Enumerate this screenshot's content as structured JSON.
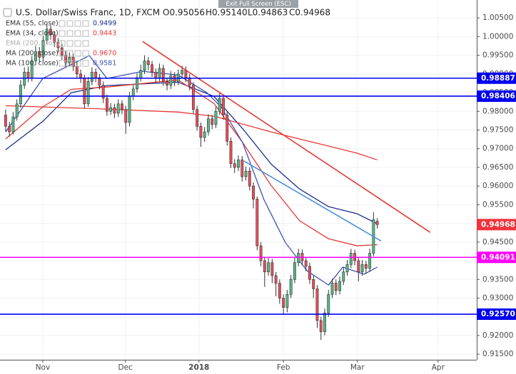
{
  "chart_data": {
    "type": "candlestick",
    "title": "U.S. Dollar/Swiss Franc, 1D, FXCM",
    "readout": [
      "O0.95056",
      "H0.95140",
      "L0.94863",
      "C0.94968"
    ],
    "exit_button": "Exit Full Screen (ESC)",
    "up_color": "#53b987",
    "down_color": "#eb4d5c",
    "grid": true,
    "xlim": [
      -1.5,
      125.5
    ],
    "xticks": [
      {
        "value": 9.9,
        "label": "Nov"
      },
      {
        "value": 31.9,
        "label": "Dec"
      },
      {
        "value": 51.5,
        "label": "2018"
      },
      {
        "value": 74,
        "label": "Feb"
      },
      {
        "value": 93.7,
        "label": "Mar"
      },
      {
        "value": 115.2,
        "label": "Apr"
      }
    ],
    "ylim": [
      0.9135,
      1.0098
    ],
    "yticks": [
      {
        "value": 0.915,
        "label": "0.91500"
      },
      {
        "value": 0.92,
        "label": "0.92000"
      },
      {
        "value": 0.925,
        "label": "0.92500"
      },
      {
        "value": 0.93,
        "label": "0.93000"
      },
      {
        "value": 0.935,
        "label": "0.93500"
      },
      {
        "value": 0.94,
        "label": "0.94000"
      },
      {
        "value": 0.945,
        "label": "0.94500"
      },
      {
        "value": 0.95,
        "label": "0.95000"
      },
      {
        "value": 0.955,
        "label": "0.95500"
      },
      {
        "value": 0.96,
        "label": "0.96000"
      },
      {
        "value": 0.965,
        "label": "0.96500"
      },
      {
        "value": 0.97,
        "label": "0.97000"
      },
      {
        "value": 0.975,
        "label": "0.97500"
      },
      {
        "value": 0.98,
        "label": "0.98000"
      },
      {
        "value": 0.985,
        "label": "0.98500"
      },
      {
        "value": 0.99,
        "label": "0.99000"
      },
      {
        "value": 0.995,
        "label": "0.99500"
      },
      {
        "value": 1.0,
        "label": "1.00000"
      },
      {
        "value": 1.005,
        "label": "1.00500"
      }
    ],
    "ohlc": [
      [
        0.979,
        0.9805,
        0.9745,
        0.976
      ],
      [
        0.976,
        0.9772,
        0.9732,
        0.9745
      ],
      [
        0.9745,
        0.9798,
        0.9738,
        0.9785
      ],
      [
        0.9785,
        0.9832,
        0.9775,
        0.982
      ],
      [
        0.982,
        0.9884,
        0.981,
        0.987
      ],
      [
        0.987,
        0.9918,
        0.986,
        0.9905
      ],
      [
        0.9905,
        0.992,
        0.9878,
        0.989
      ],
      [
        0.989,
        0.9948,
        0.988,
        0.9935
      ],
      [
        0.9935,
        0.9975,
        0.9925,
        0.996
      ],
      [
        0.996,
        0.9972,
        0.993,
        0.9945
      ],
      [
        0.9945,
        1.0002,
        0.9935,
        0.999
      ],
      [
        0.999,
        1.0034,
        0.998,
        1.002
      ],
      [
        1.002,
        1.003,
        0.9992,
        1.0005
      ],
      [
        1.0005,
        1.0015,
        0.9972,
        0.9985
      ],
      [
        0.9985,
        0.9996,
        0.9958,
        0.997
      ],
      [
        0.997,
        0.9982,
        0.9938,
        0.995
      ],
      [
        0.995,
        0.9962,
        0.9918,
        0.993
      ],
      [
        0.993,
        0.9958,
        0.992,
        0.9945
      ],
      [
        0.9945,
        0.9955,
        0.9908,
        0.992
      ],
      [
        0.992,
        0.9932,
        0.9888,
        0.99
      ],
      [
        0.99,
        0.9912,
        0.9876,
        0.989
      ],
      [
        0.989,
        0.9898,
        0.9808,
        0.982
      ],
      [
        0.982,
        0.9892,
        0.9812,
        0.988
      ],
      [
        0.988,
        0.9918,
        0.987,
        0.9905
      ],
      [
        0.9905,
        0.9915,
        0.9878,
        0.989
      ],
      [
        0.989,
        0.99,
        0.9858,
        0.987
      ],
      [
        0.987,
        0.988,
        0.9822,
        0.9835
      ],
      [
        0.9835,
        0.9845,
        0.9788,
        0.98
      ],
      [
        0.98,
        0.9822,
        0.979,
        0.981
      ],
      [
        0.981,
        0.982,
        0.9782,
        0.9795
      ],
      [
        0.9795,
        0.9832,
        0.9785,
        0.982
      ],
      [
        0.982,
        0.983,
        0.9792,
        0.9805
      ],
      [
        0.9805,
        0.9815,
        0.974,
        0.977
      ],
      [
        0.977,
        0.9852,
        0.976,
        0.984
      ],
      [
        0.984,
        0.9872,
        0.983,
        0.986
      ],
      [
        0.986,
        0.9902,
        0.985,
        0.989
      ],
      [
        0.989,
        0.9925,
        0.988,
        0.991
      ],
      [
        0.991,
        0.995,
        0.99,
        0.9935
      ],
      [
        0.9935,
        0.9945,
        0.991,
        0.9925
      ],
      [
        0.9925,
        0.9935,
        0.9892,
        0.9905
      ],
      [
        0.9905,
        0.9915,
        0.9875,
        0.989
      ],
      [
        0.989,
        0.9928,
        0.988,
        0.9915
      ],
      [
        0.9915,
        0.9925,
        0.9868,
        0.988
      ],
      [
        0.988,
        0.989,
        0.9856,
        0.987
      ],
      [
        0.987,
        0.9908,
        0.986,
        0.9895
      ],
      [
        0.9895,
        0.9905,
        0.9868,
        0.988
      ],
      [
        0.988,
        0.9912,
        0.987,
        0.99
      ],
      [
        0.99,
        0.9922,
        0.989,
        0.991
      ],
      [
        0.991,
        0.992,
        0.9878,
        0.989
      ],
      [
        0.989,
        0.99,
        0.9856,
        0.987
      ],
      [
        0.987,
        0.9878,
        0.9795,
        0.9805
      ],
      [
        0.9805,
        0.9815,
        0.9748,
        0.976
      ],
      [
        0.976,
        0.977,
        0.9705,
        0.973
      ],
      [
        0.973,
        0.9758,
        0.9718,
        0.9745
      ],
      [
        0.9745,
        0.9792,
        0.9735,
        0.978
      ],
      [
        0.978,
        0.979,
        0.9752,
        0.9765
      ],
      [
        0.9765,
        0.9812,
        0.9755,
        0.98
      ],
      [
        0.98,
        0.9848,
        0.979,
        0.9835
      ],
      [
        0.9835,
        0.9845,
        0.9778,
        0.979
      ],
      [
        0.979,
        0.9798,
        0.9708,
        0.972
      ],
      [
        0.972,
        0.973,
        0.9648,
        0.966
      ],
      [
        0.966,
        0.9672,
        0.9635,
        0.965
      ],
      [
        0.965,
        0.9682,
        0.964,
        0.967
      ],
      [
        0.967,
        0.968,
        0.9612,
        0.9625
      ],
      [
        0.9625,
        0.9652,
        0.9615,
        0.964
      ],
      [
        0.964,
        0.965,
        0.9588,
        0.96
      ],
      [
        0.96,
        0.961,
        0.954,
        0.9565
      ],
      [
        0.9565,
        0.9572,
        0.9428,
        0.944
      ],
      [
        0.944,
        0.945,
        0.9385,
        0.94
      ],
      [
        0.94,
        0.941,
        0.933,
        0.937
      ],
      [
        0.937,
        0.9408,
        0.936,
        0.9395
      ],
      [
        0.9395,
        0.9405,
        0.934,
        0.936
      ],
      [
        0.936,
        0.937,
        0.9305,
        0.934
      ],
      [
        0.934,
        0.935,
        0.9285,
        0.93
      ],
      [
        0.93,
        0.931,
        0.9255,
        0.9275
      ],
      [
        0.9275,
        0.9322,
        0.9262,
        0.931
      ],
      [
        0.931,
        0.9362,
        0.93,
        0.935
      ],
      [
        0.935,
        0.941,
        0.934,
        0.9395
      ],
      [
        0.9395,
        0.9432,
        0.9385,
        0.942
      ],
      [
        0.942,
        0.943,
        0.9388,
        0.94
      ],
      [
        0.94,
        0.941,
        0.9372,
        0.9385
      ],
      [
        0.9385,
        0.9395,
        0.9338,
        0.935
      ],
      [
        0.935,
        0.936,
        0.93,
        0.9325
      ],
      [
        0.9325,
        0.9335,
        0.922,
        0.924
      ],
      [
        0.924,
        0.925,
        0.9188,
        0.921
      ],
      [
        0.921,
        0.9272,
        0.92,
        0.926
      ],
      [
        0.926,
        0.9322,
        0.925,
        0.931
      ],
      [
        0.931,
        0.9352,
        0.93,
        0.934
      ],
      [
        0.934,
        0.935,
        0.9308,
        0.932
      ],
      [
        0.932,
        0.9358,
        0.931,
        0.9345
      ],
      [
        0.9345,
        0.9382,
        0.9335,
        0.937
      ],
      [
        0.937,
        0.9402,
        0.936,
        0.939
      ],
      [
        0.939,
        0.9432,
        0.938,
        0.942
      ],
      [
        0.942,
        0.943,
        0.9388,
        0.94
      ],
      [
        0.94,
        0.941,
        0.9345,
        0.937
      ],
      [
        0.937,
        0.9402,
        0.936,
        0.939
      ],
      [
        0.939,
        0.94,
        0.9365,
        0.938
      ],
      [
        0.938,
        0.9432,
        0.937,
        0.942
      ],
      [
        0.942,
        0.953,
        0.9412,
        0.951
      ],
      [
        0.95056,
        0.9514,
        0.94863,
        0.94968
      ]
    ],
    "indicators": [
      {
        "name": "EMA (55, close)",
        "value_label": "0.9499",
        "color": "#1c2e8c",
        "x": [
          0,
          9.9,
          17.5,
          27,
          46,
          55.5,
          63.1,
          70.7,
          78.3,
          86,
          93.6,
          99
        ],
        "values": [
          0.9697,
          0.9773,
          0.985,
          0.9869,
          0.9878,
          0.984,
          0.9754,
          0.9659,
          0.9592,
          0.9545,
          0.9526,
          0.9499
        ]
      },
      {
        "name": "EMA (34, close)",
        "value_label": "0.9443",
        "color": "#e53935",
        "x": [
          0,
          9.9,
          17.5,
          27,
          46,
          55.5,
          63.1,
          70.7,
          78.3,
          86,
          93.6,
          99
        ],
        "values": [
          0.9726,
          0.9812,
          0.9859,
          0.9865,
          0.9884,
          0.9821,
          0.9717,
          0.9602,
          0.9507,
          0.9459,
          0.944,
          0.9443
        ]
      },
      {
        "name": "EMA (200, close)",
        "color": "#b0b0b0"
      },
      {
        "name": "MA (200, close)",
        "value_label": "0.9670",
        "color": "#e53935",
        "x": [
          0,
          27,
          46,
          55.5,
          70.7,
          78.3,
          86,
          93.6,
          99
        ],
        "values": [
          0.9815,
          0.9806,
          0.9798,
          0.9787,
          0.9745,
          0.9726,
          0.9707,
          0.9688,
          0.967
        ]
      },
      {
        "name": "MA (100, close)",
        "value_label": "0.9581",
        "color": "#3f51b5"
      },
      {
        "color": "#3f51b5",
        "x": [
          0,
          9.9,
          22.3,
          27,
          36.5,
          46,
          53.6,
          57.4,
          63.1,
          68.8,
          74.5,
          80.3,
          86,
          89.8,
          95.5,
          99
        ],
        "values": [
          0.9745,
          0.9888,
          0.9949,
          0.9888,
          0.9907,
          0.9897,
          0.985,
          0.9812,
          0.9717,
          0.9564,
          0.9449,
          0.9373,
          0.9335,
          0.9383,
          0.9364,
          0.9383
        ]
      }
    ],
    "trendlines": [
      {
        "color": "#e53935",
        "x": [
          36.5,
          113.1
        ],
        "values": [
          0.9987,
          0.9476
        ]
      },
      {
        "color": "#4a90d9",
        "x": [
          63.5,
          100
        ],
        "values": [
          0.9667,
          0.9453
        ]
      }
    ],
    "levels": [
      {
        "value": 0.98887,
        "color": "#0000ee"
      },
      {
        "value": 0.98406,
        "color": "#0000ee"
      },
      {
        "value": 0.94091,
        "color": "#ff00ff"
      },
      {
        "value": 0.9257,
        "label": "0.92570",
        "color": "#0000ee"
      }
    ],
    "last_price": {
      "value": 0.94968,
      "color": "#f0323c"
    }
  }
}
